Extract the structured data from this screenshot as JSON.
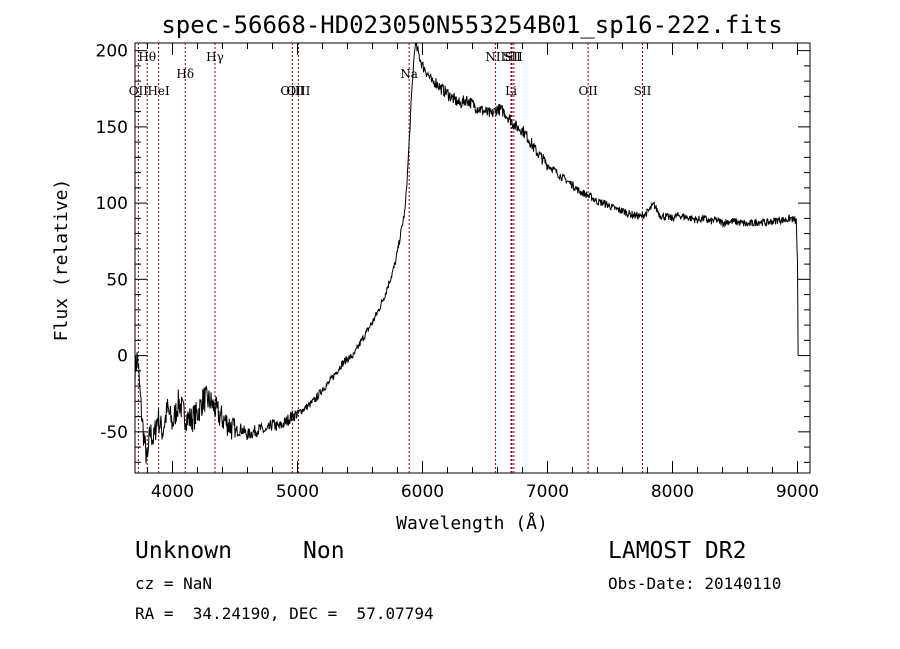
{
  "chart_data": {
    "type": "line",
    "title": "spec-56668-HD023050N553254B01_sp16-222.fits",
    "xlabel": "Wavelength (Å)",
    "ylabel": "Flux (relative)",
    "xlim": [
      3700,
      9100
    ],
    "ylim": [
      -77,
      205
    ],
    "xticks": [
      4000,
      5000,
      6000,
      7000,
      8000,
      9000
    ],
    "yticks": [
      -50,
      0,
      50,
      100,
      150,
      200
    ],
    "grid": false,
    "line_color": "#000000",
    "marker_color": "#8b0000",
    "spectral_lines": [
      {
        "name": "Hθ",
        "x": 3798,
        "row": "top"
      },
      {
        "name": "OII",
        "x": 3727,
        "row": "bottom"
      },
      {
        "name": "HeI",
        "x": 3889,
        "row": "bottom"
      },
      {
        "name": "Hδ",
        "x": 4102,
        "row": "middle"
      },
      {
        "name": "Hγ",
        "x": 4340,
        "row": "top"
      },
      {
        "name": "OIII",
        "x": 4959,
        "row": "bottom"
      },
      {
        "name": "OIII",
        "x": 5007,
        "row": "bottom"
      },
      {
        "name": "Na",
        "x": 5893,
        "row": "middle"
      },
      {
        "name": "NII",
        "x": 6583,
        "row": "top"
      },
      {
        "name": "Li",
        "x": 6708,
        "row": "bottom"
      },
      {
        "name": "SII",
        "x": 6716,
        "row": "top"
      },
      {
        "name": "SII",
        "x": 6731,
        "row": "top"
      },
      {
        "name": "OII",
        "x": 7325,
        "row": "bottom"
      },
      {
        "name": "SII",
        "x": 7760,
        "row": "bottom"
      }
    ],
    "series": [
      {
        "x": [
          3700,
          3720,
          3740,
          3760,
          3780,
          3800,
          3820,
          3850,
          3880,
          3920,
          3960,
          4000,
          4050,
          4100,
          4150,
          4200,
          4250,
          4300,
          4340,
          4380,
          4450,
          4500,
          4550,
          4600,
          4650,
          4700,
          4750,
          4800,
          4850,
          4900,
          4950,
          5000,
          5050,
          5100,
          5150,
          5200,
          5250,
          5300,
          5350,
          5400,
          5450,
          5500,
          5550,
          5600,
          5650,
          5700,
          5750,
          5780,
          5800,
          5830,
          5860,
          5880,
          5900,
          5920,
          5940,
          5960,
          5980,
          6000,
          6020,
          6040,
          6060,
          6080,
          6100,
          6150,
          6200,
          6250,
          6300,
          6350,
          6400,
          6450,
          6500,
          6550,
          6600,
          6650,
          6700,
          6750,
          6800,
          6850,
          6900,
          6950,
          7000,
          7050,
          7100,
          7150,
          7200,
          7250,
          7300,
          7350,
          7400,
          7450,
          7500,
          7550,
          7600,
          7650,
          7700,
          7750,
          7800,
          7830,
          7850,
          7880,
          7900,
          7950,
          8000,
          8050,
          8100,
          8150,
          8200,
          8250,
          8300,
          8350,
          8400,
          8450,
          8500,
          8550,
          8600,
          8650,
          8700,
          8750,
          8800,
          8850,
          8900,
          8950,
          8990,
          9000,
          9005
        ],
        "values": [
          -10,
          0,
          -25,
          -45,
          -60,
          -70,
          -50,
          -55,
          -40,
          -50,
          -35,
          -45,
          -30,
          -40,
          -42,
          -38,
          -28,
          -30,
          -35,
          -40,
          -45,
          -50,
          -48,
          -52,
          -50,
          -48,
          -50,
          -45,
          -47,
          -44,
          -40,
          -38,
          -35,
          -32,
          -28,
          -22,
          -18,
          -12,
          -6,
          -2,
          0,
          8,
          15,
          22,
          30,
          40,
          52,
          60,
          68,
          82,
          95,
          120,
          150,
          180,
          205,
          200,
          195,
          190,
          188,
          185,
          182,
          178,
          180,
          175,
          172,
          168,
          165,
          168,
          165,
          162,
          160,
          158,
          162,
          160,
          155,
          150,
          148,
          142,
          135,
          130,
          125,
          122,
          118,
          115,
          112,
          108,
          106,
          104,
          101,
          100,
          98,
          96,
          95,
          93,
          92,
          91,
          94,
          97,
          99,
          95,
          92,
          91,
          90,
          92,
          91,
          90,
          89,
          90,
          88,
          89,
          87,
          88,
          88,
          87,
          86,
          87,
          88,
          87,
          88,
          89,
          89,
          90,
          88,
          60,
          0
        ]
      }
    ]
  },
  "footer": {
    "object_class": "Unknown",
    "object_subclass": "Non",
    "survey": "LAMOST DR2",
    "redshift": "cz = NaN",
    "obs_date": "Obs-Date: 20140110",
    "coordinates": "RA =  34.24190, DEC =  57.07794"
  }
}
